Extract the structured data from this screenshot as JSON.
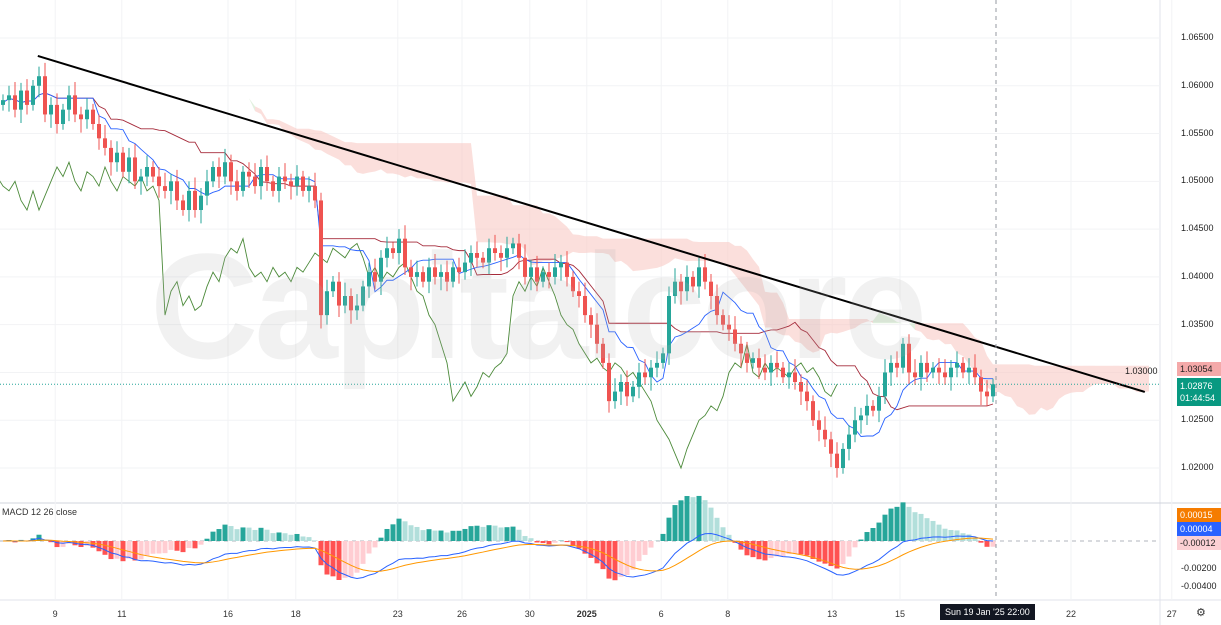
{
  "watermark": "Capitalcore",
  "indicator_label": "MACD 12 26 close",
  "crosshair_label": "Sun 19 Jan '25  22:00",
  "price_tags": {
    "kijun": "1.03054",
    "last": "1.02876",
    "countdown": "01:44:54"
  },
  "macd_tags": {
    "signal": "0.00015",
    "macd": "0.00004",
    "hist": "-0.00012"
  },
  "colors": {
    "up": "#26a69a",
    "down": "#ef5350",
    "trendline": "#000000",
    "tenkan": "#2962ff",
    "kijun": "#a52a3a",
    "chikou": "#4c8a3a",
    "cloud_bear": "#f8c9c5",
    "cloud_bull": "#cfe8c9",
    "macd": "#2962ff",
    "signal": "#ff9800"
  },
  "chart_data": {
    "type": "candlestick",
    "symbol_ylim": [
      1.0175,
      1.068
    ],
    "y_ticks": [
      "1.06500",
      "1.06000",
      "1.05500",
      "1.05000",
      "1.04500",
      "1.04000",
      "1.03500",
      "1.03000",
      "1.02500",
      "1.02000"
    ],
    "macd_ticks": [
      "-0.00200",
      "-0.00400"
    ],
    "x_ticks": [
      {
        "t": "9",
        "i": 8.7
      },
      {
        "t": "11",
        "i": 19.8
      },
      {
        "t": "16",
        "i": 37.5
      },
      {
        "t": "18",
        "i": 48.8
      },
      {
        "t": "23",
        "i": 65.8
      },
      {
        "t": "26",
        "i": 76.5
      },
      {
        "t": "30",
        "i": 87.8
      },
      {
        "t": "2025",
        "i": 97.3
      },
      {
        "t": "6",
        "i": 109.7
      },
      {
        "t": "8",
        "i": 120.8
      },
      {
        "t": "13",
        "i": 138.2
      },
      {
        "t": "15",
        "i": 149.5
      },
      {
        "t": "22",
        "i": 178
      },
      {
        "t": "27",
        "i": 194.8
      }
    ],
    "trendline": [
      [
        5.8,
        1.06312
      ],
      [
        190.3,
        1.02796
      ]
    ],
    "closes": [
      1.0585,
      1.059,
      1.0575,
      1.0595,
      1.058,
      1.06,
      1.061,
      1.057,
      1.058,
      1.056,
      1.0575,
      1.059,
      1.057,
      1.0565,
      1.0575,
      1.056,
      1.0545,
      1.0535,
      1.052,
      1.053,
      1.051,
      1.0525,
      1.05,
      1.0505,
      1.0515,
      1.0505,
      1.0495,
      1.049,
      1.05,
      1.048,
      1.047,
      1.049,
      1.047,
      1.0485,
      1.05,
      1.0515,
      1.0505,
      1.052,
      1.05,
      1.049,
      1.051,
      1.0505,
      1.0495,
      1.0515,
      1.05,
      1.049,
      1.0505,
      1.05,
      1.0495,
      1.0505,
      1.049,
      1.0495,
      1.048,
      1.036,
      1.0385,
      1.0395,
      1.037,
      1.038,
      1.0365,
      1.037,
      1.039,
      1.0405,
      1.0395,
      1.042,
      1.043,
      1.0425,
      1.044,
      1.041,
      1.04,
      1.0405,
      1.0395,
      1.041,
      1.04,
      1.0405,
      1.0395,
      1.041,
      1.0405,
      1.0415,
      1.0425,
      1.042,
      1.0415,
      1.043,
      1.0425,
      1.042,
      1.043,
      1.0435,
      1.042,
      1.04,
      1.041,
      1.0395,
      1.0405,
      1.04,
      1.041,
      1.0415,
      1.04,
      1.0385,
      1.038,
      1.036,
      1.035,
      1.033,
      1.031,
      1.027,
      1.028,
      1.029,
      1.0275,
      1.0285,
      1.03,
      1.0295,
      1.0305,
      1.031,
      1.032,
      1.038,
      1.0395,
      1.0385,
      1.04,
      1.039,
      1.041,
      1.0395,
      1.038,
      1.036,
      1.035,
      1.0345,
      1.033,
      1.032,
      1.031,
      1.0315,
      1.0305,
      1.03,
      1.031,
      1.0305,
      1.0295,
      1.03,
      1.029,
      1.028,
      1.027,
      1.025,
      1.024,
      1.023,
      1.0215,
      1.02,
      1.022,
      1.0235,
      1.025,
      1.0255,
      1.0265,
      1.026,
      1.0275,
      1.03,
      1.031,
      1.0305,
      1.033,
      1.03,
      1.0295,
      1.031,
      1.03,
      1.0305,
      1.03,
      1.0295,
      1.0305,
      1.031,
      1.03,
      1.0305,
      1.0295,
      1.028,
      1.0275,
      1.02876
    ]
  }
}
